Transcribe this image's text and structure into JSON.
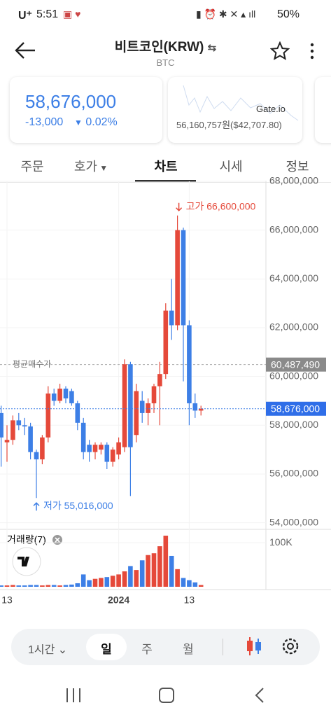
{
  "status_bar": {
    "carrier": "U⁺",
    "time": "5:51",
    "battery": "50%"
  },
  "header": {
    "title": "비트코인(KRW)",
    "subtitle": "BTC"
  },
  "price_card": {
    "price": "58,676,000",
    "change": "-13,000",
    "change_pct": "0.02%"
  },
  "exchange_card": {
    "exchange": "Gate.io",
    "price": "56,160,757원",
    "usd": "($42,707.80)"
  },
  "tabs": [
    "주문",
    "호가",
    "차트",
    "시세",
    "정보"
  ],
  "chart_data": {
    "type": "candlestick",
    "categories": [
      null,
      "13",
      null,
      null,
      null,
      null,
      null,
      null,
      null,
      null,
      null,
      null,
      null,
      null,
      null,
      null,
      null,
      null,
      null,
      null,
      "2024",
      null,
      null,
      null,
      null,
      null,
      null,
      null,
      null,
      null,
      null,
      null,
      "13",
      null,
      null
    ],
    "open": [
      58500000,
      57300000,
      57400000,
      58200000,
      58000000,
      57950000,
      56900000,
      56600000,
      57500000,
      59300000,
      59000000,
      59500000,
      59400000,
      58900000,
      58100000,
      57200000,
      56900000,
      57000000,
      57200000,
      56500000,
      56800000,
      57100000,
      60500000,
      57600000,
      59000000,
      58500000,
      58900000,
      59600000,
      60100000,
      62700000,
      62100000,
      66000000,
      62100000,
      58900000,
      58600000
    ],
    "high": [
      58800000,
      58000000,
      58400000,
      58500000,
      58300000,
      58100000,
      57000000,
      57600000,
      59600000,
      59500000,
      59700000,
      59600000,
      59500000,
      59000000,
      58300000,
      57400000,
      57300000,
      57300000,
      57300000,
      57100000,
      57500000,
      60700000,
      60600000,
      59700000,
      59400000,
      59100000,
      59700000,
      60600000,
      63000000,
      64000000,
      66600000,
      66100000,
      62300000,
      59300000,
      58800000
    ],
    "low": [
      56300000,
      56500000,
      57200000,
      57800000,
      57600000,
      56600000,
      55016000,
      56400000,
      57300000,
      58800000,
      58900000,
      58900000,
      58800000,
      57800000,
      56600000,
      56500000,
      56600000,
      56800000,
      56200000,
      56300000,
      56600000,
      56900000,
      55100000,
      57300000,
      58100000,
      58000000,
      58500000,
      58000000,
      59900000,
      61500000,
      61900000,
      59800000,
      58000000,
      58300000,
      58400000
    ],
    "close": [
      57500000,
      57400000,
      58200000,
      58000000,
      57950000,
      56900000,
      56600000,
      57500000,
      59300000,
      59000000,
      59500000,
      59100000,
      58900000,
      58100000,
      56900000,
      56900000,
      57200000,
      57200000,
      56500000,
      57000000,
      57300000,
      60500000,
      57100000,
      59400000,
      58500000,
      58900000,
      59600000,
      60100000,
      62700000,
      62100000,
      66000000,
      62100000,
      58900000,
      58600000,
      58676000
    ],
    "up_color": "#e5493a",
    "down_color": "#3d7fe6",
    "grid": true,
    "ylim": [
      53800000,
      68000000
    ],
    "yticks": [
      {
        "value": 68000000,
        "label": "68,000,000"
      },
      {
        "value": 66000000,
        "label": "66,000,000"
      },
      {
        "value": 64000000,
        "label": "64,000,000"
      },
      {
        "value": 62000000,
        "label": "62,000,000"
      },
      {
        "value": 60000000,
        "label": "60,000,000"
      },
      {
        "value": 58000000,
        "label": "58,000,000"
      },
      {
        "value": 56000000,
        "label": "56,000,000"
      },
      {
        "value": 54000000,
        "label": "54,000,000"
      }
    ],
    "annotations": {
      "high": {
        "label": "고가 66,600,000",
        "value": 66600000
      },
      "low": {
        "label": "저가 55,016,000",
        "value": 55016000
      }
    },
    "average_price": {
      "name": "평균매수가",
      "value": 60487490,
      "label": "60,487,490"
    },
    "current_price": {
      "value": 58676000,
      "label": "58,676,000"
    },
    "volume": {
      "label": "거래량(7)",
      "ylim": [
        0,
        124000
      ],
      "yticks": [
        {
          "value": 100000,
          "label": "100K"
        }
      ],
      "values": [
        3000,
        3000,
        4000,
        3000,
        3000,
        4000,
        4000,
        3000,
        4000,
        4000,
        3000,
        4000,
        5000,
        8000,
        28000,
        15000,
        18000,
        20000,
        22000,
        25000,
        28000,
        35000,
        47000,
        38000,
        60000,
        72000,
        76000,
        92000,
        116000,
        70000,
        40000,
        20000,
        15000,
        10000,
        4000
      ]
    }
  },
  "toolbar": {
    "interval": "1시간",
    "periods": [
      "일",
      "주",
      "월"
    ]
  }
}
